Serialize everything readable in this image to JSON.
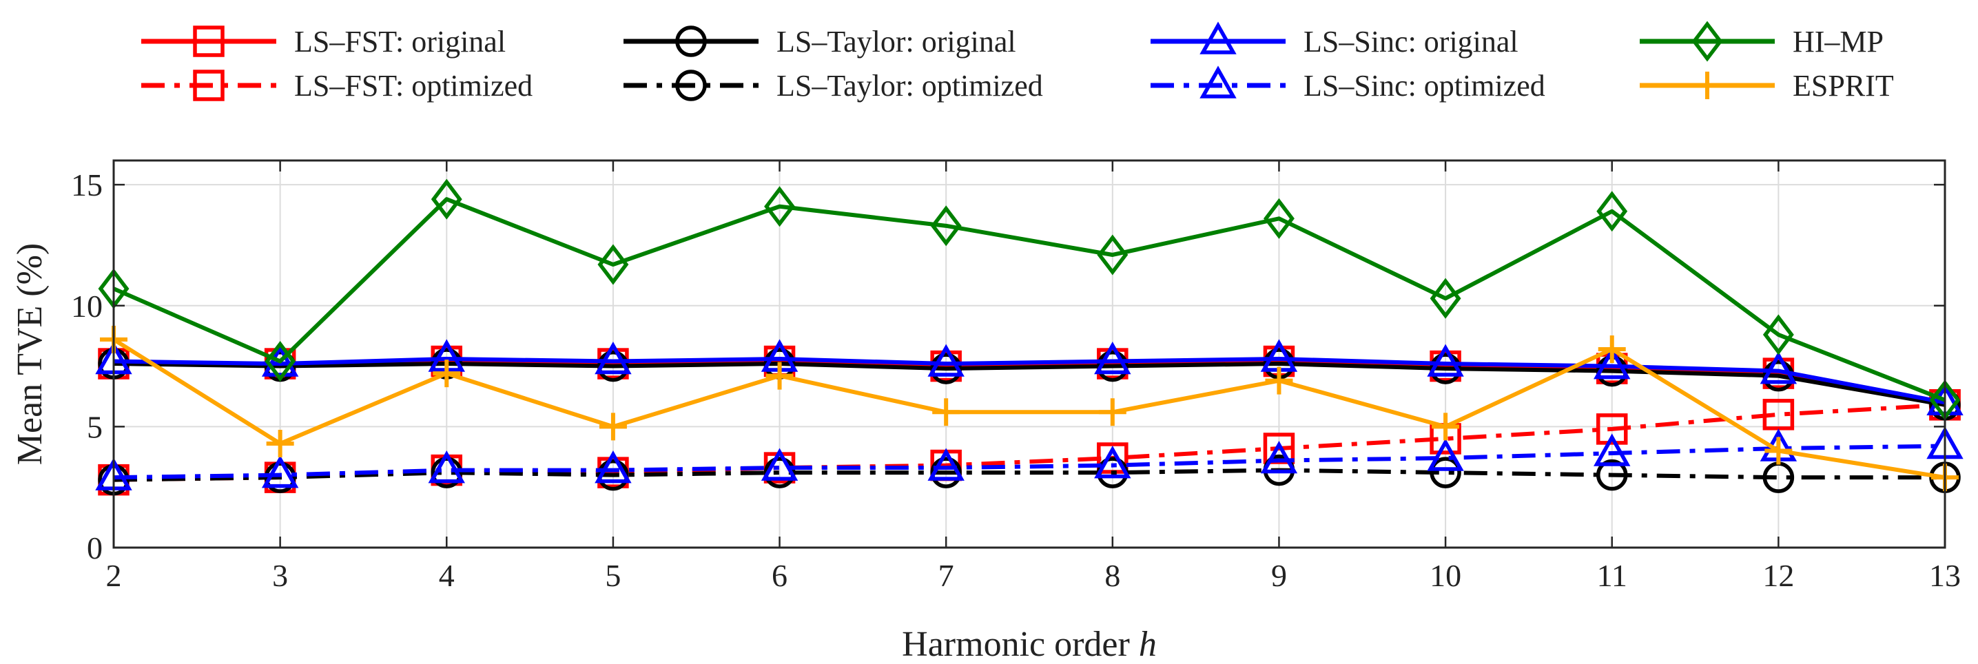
{
  "chart_data": {
    "type": "line",
    "title": "",
    "xlabel": "Harmonic order",
    "xlabel_symbol": "h",
    "ylabel": "Mean TVE (%)",
    "x": [
      2,
      3,
      4,
      5,
      6,
      7,
      8,
      9,
      10,
      11,
      12,
      13
    ],
    "xlim": [
      2,
      13
    ],
    "ylim": [
      0,
      16
    ],
    "yticks": [
      0,
      5,
      10,
      15
    ],
    "grid": true,
    "legend_position": "top",
    "series": [
      {
        "name": "LS–FST: original",
        "color": "#ff0000",
        "linestyle": "solid",
        "marker": "square",
        "values": [
          7.6,
          7.6,
          7.7,
          7.6,
          7.7,
          7.5,
          7.6,
          7.7,
          7.5,
          7.4,
          7.2,
          5.9
        ]
      },
      {
        "name": "LS–FST: optimized",
        "color": "#ff0000",
        "linestyle": "dashdot",
        "marker": "square",
        "values": [
          2.8,
          2.9,
          3.2,
          3.1,
          3.3,
          3.4,
          3.7,
          4.1,
          4.5,
          4.9,
          5.5,
          5.9
        ]
      },
      {
        "name": "LS–Taylor: original",
        "color": "#000000",
        "linestyle": "solid",
        "marker": "circle",
        "values": [
          7.6,
          7.5,
          7.6,
          7.5,
          7.6,
          7.4,
          7.5,
          7.6,
          7.4,
          7.3,
          7.1,
          5.9
        ]
      },
      {
        "name": "LS–Taylor: optimized",
        "color": "#000000",
        "linestyle": "dashdot",
        "marker": "circle",
        "values": [
          2.8,
          2.9,
          3.1,
          3.0,
          3.1,
          3.1,
          3.1,
          3.2,
          3.1,
          3.0,
          2.9,
          2.9
        ]
      },
      {
        "name": "LS–Sinc: original",
        "color": "#0000ff",
        "linestyle": "solid",
        "marker": "triangle",
        "values": [
          7.7,
          7.6,
          7.8,
          7.7,
          7.8,
          7.6,
          7.7,
          7.8,
          7.6,
          7.5,
          7.3,
          6.0
        ]
      },
      {
        "name": "LS–Sinc: optimized",
        "color": "#0000ff",
        "linestyle": "dashdot",
        "marker": "triangle",
        "values": [
          2.9,
          3.0,
          3.2,
          3.2,
          3.3,
          3.3,
          3.4,
          3.6,
          3.7,
          3.9,
          4.1,
          4.2
        ]
      },
      {
        "name": "HI–MP",
        "color": "#008000",
        "linestyle": "solid",
        "marker": "diamond",
        "values": [
          10.7,
          7.7,
          14.4,
          11.7,
          14.1,
          13.3,
          12.1,
          13.6,
          10.3,
          13.9,
          8.8,
          6.1
        ]
      },
      {
        "name": "ESPRIT",
        "color": "#ffa500",
        "linestyle": "solid",
        "marker": "plus",
        "values": [
          8.6,
          4.3,
          7.2,
          5.0,
          7.1,
          5.6,
          5.6,
          6.9,
          5.0,
          8.2,
          4.0,
          2.9
        ]
      }
    ]
  }
}
